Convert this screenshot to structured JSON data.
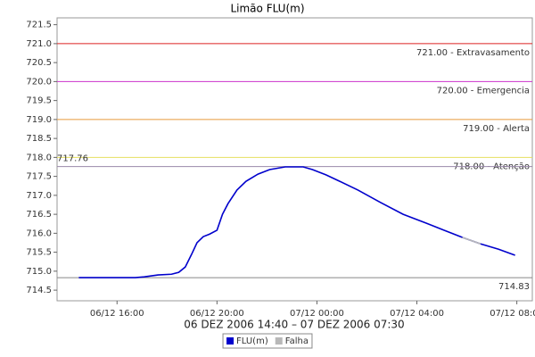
{
  "chart_data": {
    "type": "line",
    "title": "Limão FLU(m)",
    "x_label": "06 DEZ 2006 14:40 – 07 DEZ 2006 07:30",
    "x": [
      14.47,
      16.73,
      17.09,
      17.64,
      18.18,
      18.47,
      18.73,
      18.98,
      19.2,
      19.45,
      19.71,
      20,
      20.22,
      20.44,
      20.8,
      21.16,
      21.64,
      22.11,
      22.73,
      23.45,
      23.82,
      24.36,
      24.91,
      25.64,
      26.55,
      27.45,
      28.36,
      29.09,
      29.82,
      30.55,
      31.27,
      31.93
    ],
    "series": [
      {
        "name": "FLU(m)",
        "color": "#0000cc",
        "values": [
          714.83,
          714.83,
          714.85,
          714.9,
          714.92,
          714.97,
          715.11,
          715.44,
          715.75,
          715.91,
          715.98,
          716.08,
          716.5,
          716.78,
          717.14,
          717.37,
          717.56,
          717.68,
          717.75,
          717.75,
          717.68,
          717.54,
          717.37,
          717.14,
          716.81,
          716.5,
          716.27,
          716.08,
          715.89,
          715.72,
          715.58,
          715.42
        ]
      },
      {
        "name": "Falha",
        "color": "#b8b8b8",
        "values": [
          null,
          null,
          null,
          null,
          null,
          null,
          null,
          null,
          null,
          null,
          null,
          null,
          null,
          null,
          null,
          null,
          null,
          null,
          null,
          null,
          null,
          null,
          null,
          null,
          null,
          null,
          null,
          null,
          715.89,
          715.72,
          null,
          null
        ]
      }
    ],
    "xlim": [
      13.6,
      32.62
    ],
    "xticks": [
      {
        "value": 16,
        "label": "06/12 16:00"
      },
      {
        "value": 20,
        "label": "06/12 20:00"
      },
      {
        "value": 24,
        "label": "07/12 00:00"
      },
      {
        "value": 28,
        "label": "07/12 04:00"
      },
      {
        "value": 32,
        "label": "07/12 08:00"
      }
    ],
    "ylim": [
      714.22,
      721.68
    ],
    "yticks": [
      714.5,
      {
        "value": 715,
        "label": "715.0"
      },
      715.5,
      {
        "value": 716,
        "label": "716.0"
      },
      716.5,
      {
        "value": 717,
        "label": "717.0"
      },
      717.5,
      {
        "value": 718,
        "label": "718.0"
      },
      718.5,
      {
        "value": 719,
        "label": "719.0"
      },
      719.5,
      {
        "value": 720,
        "label": "720.0"
      },
      720.5,
      {
        "value": 721,
        "label": "721.0"
      },
      721.5
    ],
    "thresholds": [
      {
        "value": 721,
        "label": "721.00 - Extravasamento",
        "color": "#dd2222",
        "label_position": "right"
      },
      {
        "value": 720,
        "label": "720.00 - Emergencia",
        "color": "#cc33cc",
        "label_position": "right"
      },
      {
        "value": 719,
        "label": "719.00 - Alerta",
        "color": "#e89a3a",
        "label_position": "right"
      },
      {
        "value": 718,
        "label": "718.00 - Atenção",
        "color": "#e6e060",
        "label_position": "right"
      },
      {
        "value": 717.76,
        "label": "717.76",
        "color": "#9a88aa",
        "label_position": "left"
      },
      {
        "value": 714.83,
        "label": "714.83",
        "color": "#888888",
        "label_position": "right"
      }
    ],
    "legend": "bottom"
  }
}
